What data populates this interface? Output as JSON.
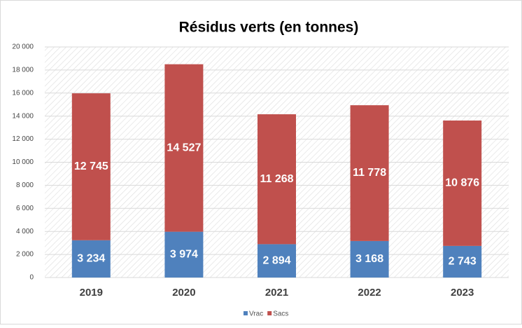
{
  "chart_data": {
    "type": "stacked-bar",
    "title": "Résidus verts (en tonnes)",
    "categories": [
      "2019",
      "2020",
      "2021",
      "2022",
      "2023"
    ],
    "series": [
      {
        "name": "Vrac",
        "color": "#4f81bd",
        "values": [
          3234,
          3974,
          2894,
          3168,
          2743
        ],
        "value_labels": [
          "3 234",
          "3 974",
          "2 894",
          "3 168",
          "2 743"
        ]
      },
      {
        "name": "Sacs",
        "color": "#c0504d",
        "values": [
          12745,
          14527,
          11268,
          11778,
          10876
        ],
        "value_labels": [
          "12 745",
          "14 527",
          "11 268",
          "11 778",
          "10 876"
        ]
      }
    ],
    "ylim": [
      0,
      20000
    ],
    "yticks": [
      0,
      {
        "value": 2000,
        "label": "2 000"
      },
      {
        "value": 4000,
        "label": "4 000"
      },
      {
        "value": 6000,
        "label": "6 000"
      },
      {
        "value": 8000,
        "label": "8 000"
      },
      {
        "value": 10000,
        "label": "10 000"
      },
      {
        "value": 12000,
        "label": "12 000"
      },
      {
        "value": 14000,
        "label": "14 000"
      },
      {
        "value": 16000,
        "label": "16 000"
      },
      {
        "value": 18000,
        "label": "18 000"
      },
      {
        "value": 20000,
        "label": "20 000"
      }
    ],
    "grid": true,
    "legend": "bottom"
  }
}
